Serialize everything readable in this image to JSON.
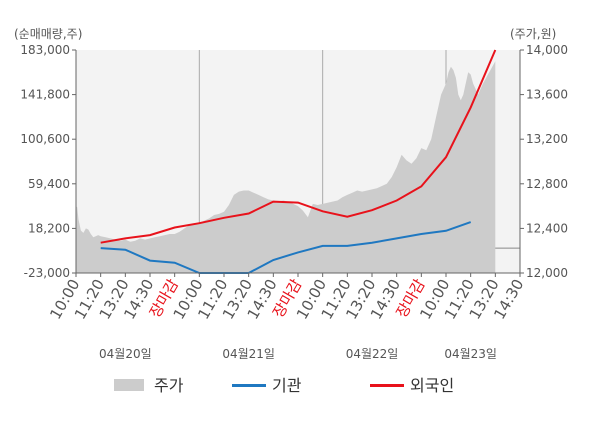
{
  "chart_data": {
    "type": "line",
    "left_axis_title": "(순매매량,주)",
    "right_axis_title": "(주가,원)",
    "left_ticks": [
      "183,000",
      "141,800",
      "100,600",
      "59,400",
      "18,200",
      "-23,000"
    ],
    "right_ticks": [
      "14,000",
      "13,600",
      "13,200",
      "12,800",
      "12,400",
      "12,000"
    ],
    "ylim_left": [
      -23000,
      183000
    ],
    "ylim_right": [
      12000,
      14000
    ],
    "x_tick_labels": [
      "10:00",
      "11:20",
      "13:20",
      "14:30",
      "장마감",
      "10:00",
      "11:20",
      "13:20",
      "14:30",
      "장마감",
      "10:00",
      "11:20",
      "13:20",
      "14:30",
      "장마감",
      "10:00",
      "11:20",
      "13:20",
      "14:30"
    ],
    "close_label": "장마감",
    "date_labels": [
      {
        "label": "04월20일",
        "tick_index": 2
      },
      {
        "label": "04월21일",
        "tick_index": 7
      },
      {
        "label": "04월22일",
        "tick_index": 12
      },
      {
        "label": "04월23일",
        "tick_index": 16
      }
    ],
    "series": [
      {
        "name": "주가",
        "axis": "right",
        "style": "area",
        "color": "#cccccc",
        "x": [
          0,
          0.05,
          0.1,
          0.2,
          0.3,
          0.4,
          0.5,
          0.6,
          0.7,
          0.8,
          0.9,
          1,
          1.2,
          1.4,
          1.6,
          1.8,
          2,
          2.2,
          2.4,
          2.6,
          2.8,
          3,
          3.2,
          3.4,
          3.6,
          3.8,
          4,
          4.2,
          4.4,
          4.6,
          4.8,
          5,
          5.2,
          5.4,
          5.6,
          5.8,
          6,
          6.2,
          6.4,
          6.6,
          6.8,
          7,
          7.2,
          7.4,
          7.6,
          7.8,
          8,
          8.2,
          8.4,
          8.6,
          8.8,
          9,
          9.2,
          9.4,
          9.6,
          9.8,
          10,
          10.2,
          10.4,
          10.6,
          10.8,
          11,
          11.2,
          11.4,
          11.6,
          11.8,
          12,
          12.2,
          12.4,
          12.6,
          12.8,
          13,
          13.2,
          13.4,
          13.6,
          13.8,
          14,
          14.2,
          14.4,
          14.6,
          14.8,
          15,
          15.1,
          15.2,
          15.3,
          15.4,
          15.5,
          15.6,
          15.7,
          15.8,
          15.9,
          16,
          16.1,
          16.2,
          16.3,
          16.4,
          16.5,
          16.6,
          16.7,
          16.8,
          16.9,
          17
        ],
        "values": [
          12600,
          12590,
          12480,
          12380,
          12360,
          12400,
          12390,
          12350,
          12320,
          12330,
          12340,
          12330,
          12320,
          12310,
          12300,
          12290,
          12300,
          12280,
          12290,
          12310,
          12300,
          12310,
          12320,
          12330,
          12340,
          12350,
          12350,
          12370,
          12400,
          12430,
          12440,
          12450,
          12470,
          12490,
          12520,
          12530,
          12550,
          12610,
          12700,
          12730,
          12740,
          12740,
          12720,
          12700,
          12680,
          12660,
          12650,
          12640,
          12650,
          12640,
          12620,
          12600,
          12560,
          12500,
          12620,
          12610,
          12620,
          12630,
          12640,
          12650,
          12680,
          12700,
          12720,
          12740,
          12730,
          12740,
          12750,
          12760,
          12780,
          12800,
          12860,
          12950,
          13060,
          13010,
          12980,
          13030,
          13120,
          13100,
          13200,
          13400,
          13600,
          13700,
          13800,
          13850,
          13820,
          13750,
          13600,
          13550,
          13600,
          13700,
          13800,
          13780,
          13700,
          13650,
          13600,
          13650,
          13700,
          13740,
          13780,
          13820,
          13860,
          13900
        ]
      },
      {
        "name": "기관",
        "axis": "left",
        "style": "line",
        "color": "#1f78c1",
        "x": [
          1,
          2,
          3,
          4,
          5,
          6,
          7,
          8,
          9,
          10,
          11,
          12,
          13,
          14,
          15,
          16
        ],
        "values": [
          0,
          -1500,
          -11500,
          -13500,
          -23000,
          -23000,
          -23000,
          -11000,
          -4000,
          2000,
          2000,
          5000,
          9000,
          13000,
          16000,
          24000
        ]
      },
      {
        "name": "외국인",
        "axis": "left",
        "style": "line",
        "color": "#e8121b",
        "x": [
          1,
          2,
          3,
          4,
          5,
          6,
          7,
          8,
          9,
          10,
          11,
          12,
          13,
          14,
          15,
          16,
          17
        ],
        "values": [
          5000,
          9000,
          12000,
          19000,
          23000,
          28000,
          32000,
          43000,
          42000,
          34000,
          29000,
          35000,
          44000,
          57000,
          84000,
          130000,
          183000
        ]
      }
    ],
    "legend": {
      "placement": "bottom",
      "entries": [
        "주가",
        "기관",
        "외국인"
      ]
    },
    "grid": {
      "vertical_at_ticks": [
        5,
        10,
        15
      ]
    }
  }
}
